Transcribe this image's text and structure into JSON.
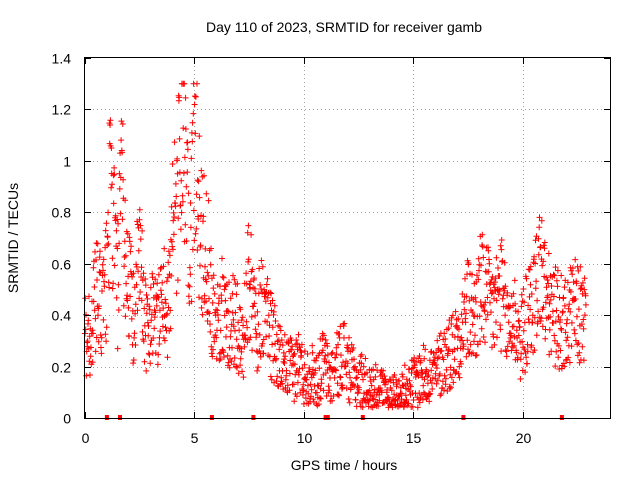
{
  "chart_data": {
    "type": "scatter",
    "title": "Day 110 of 2023, SRMTID for receiver gamb",
    "xlabel": "GPS time / hours",
    "ylabel": "SRMTID / TECUs",
    "xlim": [
      0,
      24
    ],
    "ylim": [
      0,
      1.4
    ],
    "xticks": [
      0,
      5,
      10,
      15,
      20
    ],
    "xtick_labels": [
      "0",
      "5",
      "10",
      "15",
      "20"
    ],
    "yticks": [
      0,
      0.2,
      0.4,
      0.6,
      0.8,
      1.0,
      1.2,
      1.4
    ],
    "ytick_labels": [
      "0",
      "0.2",
      "0.4",
      "0.6",
      "0.8",
      "1",
      "1.2",
      "1.4"
    ],
    "grid": true,
    "marker": "+",
    "color": "#ff0000",
    "envelope_hours": [
      0.0,
      0.3,
      0.5,
      0.8,
      1.0,
      1.1,
      1.3,
      1.5,
      1.7,
      1.8,
      2.0,
      2.2,
      2.5,
      2.7,
      2.9,
      3.1,
      3.3,
      3.5,
      3.8,
      4.0,
      4.2,
      4.4,
      4.6,
      4.8,
      5.0,
      5.2,
      5.4,
      5.6,
      5.8,
      6.0,
      6.3,
      6.6,
      6.9,
      7.2,
      7.5,
      7.8,
      8.0,
      8.3,
      8.6,
      8.9,
      9.2,
      9.5,
      9.8,
      10.0,
      10.3,
      10.6,
      10.9,
      11.2,
      11.5,
      11.8,
      12.1,
      12.4,
      12.7,
      13.0,
      13.3,
      13.6,
      13.9,
      14.2,
      14.5,
      14.8,
      15.1,
      15.4,
      15.7,
      16.0,
      16.3,
      16.6,
      16.9,
      17.2,
      17.5,
      17.8,
      18.1,
      18.4,
      18.7,
      19.0,
      19.3,
      19.6,
      19.9,
      20.2,
      20.5,
      20.8,
      21.1,
      21.4,
      21.7,
      22.0,
      22.3,
      22.6,
      22.9
    ],
    "envelope_srmtid": [
      0.32,
      0.34,
      0.48,
      0.42,
      0.55,
      0.85,
      0.78,
      0.5,
      0.95,
      0.65,
      0.55,
      0.38,
      0.62,
      0.42,
      0.32,
      0.48,
      0.35,
      0.5,
      0.4,
      0.78,
      0.74,
      1.15,
      0.9,
      0.6,
      1.1,
      0.8,
      0.68,
      0.65,
      0.45,
      0.4,
      0.42,
      0.35,
      0.4,
      0.25,
      0.55,
      0.35,
      0.42,
      0.4,
      0.3,
      0.22,
      0.2,
      0.18,
      0.22,
      0.16,
      0.18,
      0.15,
      0.22,
      0.15,
      0.2,
      0.26,
      0.18,
      0.14,
      0.15,
      0.1,
      0.12,
      0.1,
      0.09,
      0.08,
      0.1,
      0.12,
      0.14,
      0.16,
      0.18,
      0.17,
      0.22,
      0.25,
      0.28,
      0.35,
      0.42,
      0.38,
      0.5,
      0.45,
      0.42,
      0.5,
      0.35,
      0.4,
      0.3,
      0.38,
      0.45,
      0.6,
      0.45,
      0.4,
      0.38,
      0.35,
      0.42,
      0.4,
      0.38
    ],
    "gap_marker_hours": [
      1.0,
      1.6,
      5.8,
      7.7,
      11.0,
      11.1,
      12.7,
      17.3,
      21.8
    ]
  }
}
